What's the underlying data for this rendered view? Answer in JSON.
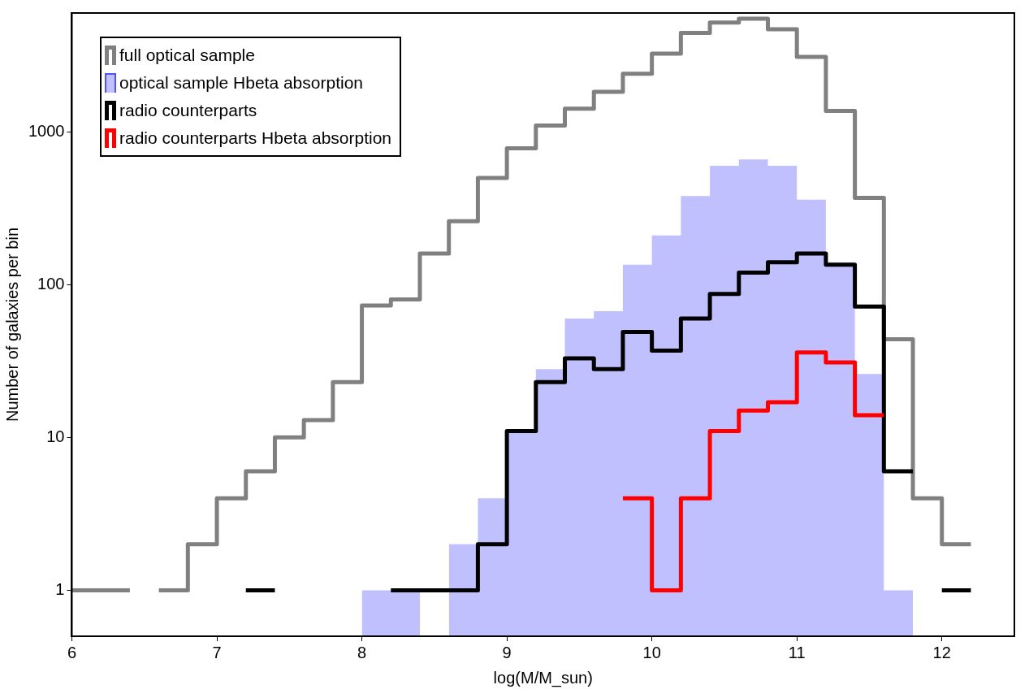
{
  "chart_data": {
    "type": "histogram",
    "xlabel": "log(M/M_sun)",
    "ylabel": "Number of galaxies per bin",
    "bins": [
      8.0,
      8.2,
      8.4,
      8.6,
      8.8,
      9.0,
      9.2,
      9.4,
      9.6,
      9.8,
      10.0,
      10.2,
      10.4,
      10.6,
      10.8,
      11.0,
      11.2,
      11.4,
      11.6,
      11.8
    ],
    "series": [
      {
        "name": "full optical sample",
        "type": "step",
        "color": "#808080",
        "x": [
          6.0,
          6.2,
          6.4,
          6.6,
          6.8,
          7.0,
          7.2,
          7.4,
          7.6,
          7.8,
          8.0,
          8.2,
          8.4,
          8.6,
          8.8,
          9.0,
          9.2,
          9.4,
          9.6,
          9.8,
          10.0,
          10.2,
          10.4,
          10.6,
          10.8,
          11.0,
          11.2,
          11.4,
          11.6,
          11.8,
          12.0,
          12.2
        ],
        "values": [
          1,
          1,
          null,
          1,
          2,
          4,
          6,
          10,
          13,
          23,
          73,
          80,
          160,
          260,
          500,
          780,
          1100,
          1420,
          1830,
          2400,
          3250,
          4450,
          5200,
          5500,
          4700,
          3100,
          1370,
          370,
          44,
          4,
          2,
          2
        ]
      },
      {
        "name": "optical sample Hbeta absorption",
        "color": "#5050ff",
        "values": [
          1,
          1,
          null,
          2,
          4,
          11,
          28,
          60,
          67,
          135,
          210,
          380,
          600,
          660,
          600,
          360,
          140,
          26,
          1
        ]
      },
      {
        "name": "radio counterparts",
        "type": "step",
        "color": "#000000",
        "x": [
          7.2,
          7.4,
          7.6,
          7.8,
          8.0,
          8.2,
          8.4,
          8.6,
          8.8,
          9.0,
          9.2,
          9.4,
          9.6,
          9.8,
          10.0,
          10.2,
          10.4,
          10.6,
          10.8,
          11.0,
          11.2,
          11.4,
          11.6,
          11.8,
          12.0,
          12.2
        ],
        "values": [
          1,
          null,
          null,
          null,
          null,
          1,
          1,
          1,
          2,
          11,
          23,
          33,
          28,
          49,
          37,
          60,
          87,
          120,
          140,
          160,
          135,
          72,
          6,
          null,
          1,
          1
        ]
      },
      {
        "name": "radio counterparts Hbeta absorption",
        "type": "step",
        "color": "#ff0000",
        "x": [
          9.8,
          10.0,
          10.2,
          10.4,
          10.6,
          10.8,
          11.0,
          11.2,
          11.4,
          11.6
        ],
        "values": [
          4,
          1,
          4,
          11,
          15,
          17,
          36,
          31,
          14,
          14
        ]
      }
    ],
    "xlim": [
      6,
      12.5
    ],
    "xticks": [
      6,
      7,
      8,
      9,
      10,
      11,
      12
    ],
    "ylim": [
      0.5,
      6000
    ],
    "yticks": [
      1,
      10,
      100,
      1000
    ],
    "log": "y",
    "grid": false,
    "legend": "top left"
  }
}
